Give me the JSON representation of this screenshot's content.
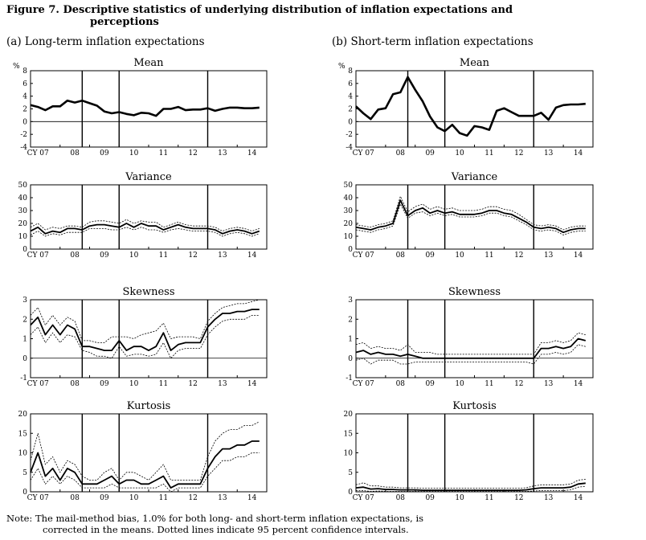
{
  "figure": {
    "title_line1": "Figure 7. Descriptive statistics of underlying distribution of inflation expectations and",
    "title_line2": "perceptions",
    "panel_a_heading": "(a) Long-term inflation expectations",
    "panel_b_heading": "(b) Short-term inflation expectations",
    "note_line1": "Note: The mail-method bias, 1.0% for both long- and short-term inflation expectations, is",
    "note_line2": "corrected in the means. Dotted lines indicate 95 percent confidence intervals."
  },
  "colors": {
    "line": "#000000",
    "background": "#ffffff"
  },
  "x_axis": {
    "range": [
      2007.0,
      2015.0
    ],
    "tick_labels": [
      {
        "label": "CY 07",
        "x": 2007.25
      },
      {
        "label": "08",
        "x": 2008.5
      },
      {
        "label": "09",
        "x": 2009.5
      },
      {
        "label": "10",
        "x": 2010.5
      },
      {
        "label": "11",
        "x": 2011.5
      },
      {
        "label": "12",
        "x": 2012.5
      },
      {
        "label": "13",
        "x": 2013.5
      },
      {
        "label": "14",
        "x": 2014.5
      }
    ],
    "vertical_lines": [
      2008.75,
      2010.0,
      2013.0
    ]
  },
  "chart_data": [
    {
      "type": "line",
      "panel": "a",
      "title": "Mean",
      "ylabel": "%",
      "ylim": [
        -4,
        8
      ],
      "yticks": [
        -4,
        -2,
        0,
        2,
        4,
        6,
        8
      ],
      "zero_line": true,
      "x": [
        2007.0,
        2007.25,
        2007.5,
        2007.75,
        2008.0,
        2008.25,
        2008.5,
        2008.75,
        2009.0,
        2009.25,
        2009.5,
        2009.75,
        2010.0,
        2010.25,
        2010.5,
        2010.75,
        2011.0,
        2011.25,
        2011.5,
        2011.75,
        2012.0,
        2012.25,
        2012.5,
        2012.75,
        2013.0,
        2013.25,
        2013.5,
        2013.75,
        2014.0,
        2014.25,
        2014.5,
        2014.75
      ],
      "series": [
        {
          "values": [
            2.6,
            2.3,
            1.8,
            2.4,
            2.4,
            3.3,
            3.0,
            3.3,
            2.9,
            2.5,
            1.6,
            1.3,
            1.5,
            1.2,
            1.0,
            1.4,
            1.3,
            0.9,
            2.0,
            2.0,
            2.3,
            1.8,
            1.9,
            1.9,
            2.1,
            1.7,
            2.0,
            2.2,
            2.2,
            2.1,
            2.1,
            2.2
          ]
        }
      ]
    },
    {
      "type": "line",
      "panel": "b",
      "title": "Mean",
      "ylabel": "%",
      "ylim": [
        -4,
        8
      ],
      "yticks": [
        -4,
        -2,
        0,
        2,
        4,
        6,
        8
      ],
      "zero_line": true,
      "x": [
        2007.0,
        2007.25,
        2007.5,
        2007.75,
        2008.0,
        2008.25,
        2008.5,
        2008.75,
        2009.0,
        2009.25,
        2009.5,
        2009.75,
        2010.0,
        2010.25,
        2010.5,
        2010.75,
        2011.0,
        2011.25,
        2011.5,
        2011.75,
        2012.0,
        2012.25,
        2012.5,
        2012.75,
        2013.0,
        2013.25,
        2013.5,
        2013.75,
        2014.0,
        2014.25,
        2014.5,
        2014.75
      ],
      "series": [
        {
          "values": [
            2.4,
            1.3,
            0.4,
            1.9,
            2.1,
            4.3,
            4.6,
            7.0,
            5.0,
            3.2,
            0.8,
            -0.9,
            -1.5,
            -0.5,
            -1.8,
            -2.2,
            -0.7,
            -0.9,
            -1.3,
            1.7,
            2.1,
            1.5,
            0.9,
            0.9,
            0.9,
            1.4,
            0.3,
            2.2,
            2.6,
            2.7,
            2.7,
            2.8
          ]
        }
      ]
    },
    {
      "type": "line",
      "panel": "a",
      "title": "Variance",
      "ylim": [
        0,
        50
      ],
      "yticks": [
        0,
        10,
        20,
        30,
        40,
        50
      ],
      "zero_line": false,
      "x": [
        2007.0,
        2007.25,
        2007.5,
        2007.75,
        2008.0,
        2008.25,
        2008.5,
        2008.75,
        2009.0,
        2009.25,
        2009.5,
        2009.75,
        2010.0,
        2010.25,
        2010.5,
        2010.75,
        2011.0,
        2011.25,
        2011.5,
        2011.75,
        2012.0,
        2012.25,
        2012.5,
        2012.75,
        2013.0,
        2013.25,
        2013.5,
        2013.75,
        2014.0,
        2014.25,
        2014.5,
        2014.75
      ],
      "series": [
        {
          "name": "mean",
          "values": [
            14,
            17,
            12,
            14,
            13,
            16,
            16,
            15,
            18,
            19,
            19,
            18,
            17,
            20,
            17,
            20,
            18,
            18,
            15,
            17,
            19,
            17,
            16,
            16,
            16,
            15,
            12,
            14,
            15,
            14,
            12,
            14
          ]
        },
        {
          "name": "upper",
          "values": [
            17,
            20,
            15,
            17,
            16,
            18,
            18,
            17,
            21,
            22,
            22,
            21,
            20,
            23,
            20,
            22,
            21,
            21,
            17,
            19,
            21,
            19,
            18,
            18,
            18,
            17,
            14,
            16,
            17,
            16,
            14,
            16
          ]
        },
        {
          "name": "lower",
          "values": [
            11,
            14,
            10,
            12,
            11,
            13,
            13,
            13,
            16,
            16,
            16,
            15,
            15,
            17,
            15,
            17,
            15,
            15,
            13,
            15,
            16,
            15,
            14,
            14,
            14,
            13,
            10,
            12,
            13,
            12,
            10,
            12
          ]
        }
      ]
    },
    {
      "type": "line",
      "panel": "b",
      "title": "Variance",
      "ylim": [
        0,
        50
      ],
      "yticks": [
        0,
        10,
        20,
        30,
        40,
        50
      ],
      "zero_line": false,
      "x": [
        2007.0,
        2007.25,
        2007.5,
        2007.75,
        2008.0,
        2008.25,
        2008.5,
        2008.75,
        2009.0,
        2009.25,
        2009.5,
        2009.75,
        2010.0,
        2010.25,
        2010.5,
        2010.75,
        2011.0,
        2011.25,
        2011.5,
        2011.75,
        2012.0,
        2012.25,
        2012.5,
        2012.75,
        2013.0,
        2013.25,
        2013.5,
        2013.75,
        2014.0,
        2014.25,
        2014.5,
        2014.75
      ],
      "series": [
        {
          "name": "mean",
          "values": [
            17,
            16,
            15,
            17,
            18,
            20,
            38,
            26,
            30,
            32,
            28,
            30,
            28,
            29,
            27,
            27,
            27,
            28,
            30,
            30,
            28,
            27,
            24,
            21,
            17,
            16,
            17,
            16,
            13,
            15,
            16,
            16
          ]
        },
        {
          "name": "upper",
          "values": [
            19,
            18,
            17,
            19,
            20,
            22,
            41,
            29,
            33,
            35,
            31,
            33,
            31,
            32,
            30,
            30,
            30,
            31,
            33,
            33,
            31,
            30,
            27,
            23,
            19,
            18,
            19,
            18,
            15,
            17,
            18,
            18
          ]
        },
        {
          "name": "lower",
          "values": [
            15,
            14,
            13,
            15,
            16,
            18,
            35,
            24,
            28,
            29,
            26,
            28,
            26,
            27,
            25,
            25,
            25,
            26,
            28,
            28,
            26,
            25,
            22,
            19,
            15,
            14,
            15,
            14,
            11,
            13,
            14,
            14
          ]
        }
      ]
    },
    {
      "type": "line",
      "panel": "a",
      "title": "Skewness",
      "ylim": [
        -1,
        3
      ],
      "yticks": [
        -1,
        0,
        1,
        2,
        3
      ],
      "zero_line": true,
      "x": [
        2007.0,
        2007.25,
        2007.5,
        2007.75,
        2008.0,
        2008.25,
        2008.5,
        2008.75,
        2009.0,
        2009.25,
        2009.5,
        2009.75,
        2010.0,
        2010.25,
        2010.5,
        2010.75,
        2011.0,
        2011.25,
        2011.5,
        2011.75,
        2012.0,
        2012.25,
        2012.5,
        2012.75,
        2013.0,
        2013.25,
        2013.5,
        2013.75,
        2014.0,
        2014.25,
        2014.5,
        2014.75
      ],
      "series": [
        {
          "name": "mean",
          "values": [
            1.7,
            2.1,
            1.2,
            1.7,
            1.2,
            1.7,
            1.5,
            0.6,
            0.6,
            0.5,
            0.4,
            0.4,
            0.9,
            0.4,
            0.6,
            0.6,
            0.4,
            0.6,
            1.3,
            0.4,
            0.7,
            0.8,
            0.8,
            0.8,
            1.6,
            2.0,
            2.3,
            2.3,
            2.4,
            2.4,
            2.5,
            2.5
          ]
        },
        {
          "name": "upper",
          "values": [
            2.2,
            2.6,
            1.7,
            2.2,
            1.7,
            2.1,
            1.9,
            0.9,
            0.9,
            0.8,
            0.8,
            1.1,
            1.1,
            1.1,
            1.0,
            1.2,
            1.3,
            1.4,
            1.8,
            1.0,
            1.1,
            1.1,
            1.1,
            1.0,
            1.9,
            2.3,
            2.6,
            2.7,
            2.8,
            2.8,
            2.9,
            3.0
          ]
        },
        {
          "name": "lower",
          "values": [
            1.2,
            1.6,
            0.8,
            1.3,
            0.8,
            1.2,
            1.1,
            0.4,
            0.3,
            0.1,
            0.1,
            0.0,
            0.6,
            0.1,
            0.2,
            0.2,
            0.1,
            0.2,
            0.8,
            0.0,
            0.4,
            0.5,
            0.5,
            0.5,
            1.2,
            1.6,
            1.9,
            2.0,
            2.0,
            2.0,
            2.2,
            2.2
          ]
        }
      ]
    },
    {
      "type": "line",
      "panel": "b",
      "title": "Skewness",
      "ylim": [
        -1,
        3
      ],
      "yticks": [
        -1,
        0,
        1,
        2,
        3
      ],
      "zero_line": true,
      "x": [
        2007.0,
        2007.25,
        2007.5,
        2007.75,
        2008.0,
        2008.25,
        2008.5,
        2008.75,
        2009.0,
        2009.25,
        2009.5,
        2009.75,
        2010.0,
        2010.25,
        2010.5,
        2010.75,
        2011.0,
        2011.25,
        2011.5,
        2011.75,
        2012.0,
        2012.25,
        2012.5,
        2012.75,
        2013.0,
        2013.25,
        2013.5,
        2013.75,
        2014.0,
        2014.25,
        2014.5,
        2014.75
      ],
      "series": [
        {
          "name": "mean",
          "values": [
            0.3,
            0.4,
            0.2,
            0.3,
            0.2,
            0.2,
            0.1,
            0.2,
            0.1,
            0.0,
            0.0,
            0.0,
            0.0,
            0.0,
            0.0,
            0.0,
            0.0,
            0.0,
            0.0,
            0.0,
            0.0,
            0.0,
            0.0,
            0.0,
            0.0,
            0.5,
            0.5,
            0.6,
            0.5,
            0.6,
            1.0,
            0.9
          ]
        },
        {
          "name": "upper",
          "values": [
            0.7,
            0.8,
            0.5,
            0.6,
            0.5,
            0.5,
            0.4,
            0.7,
            0.3,
            0.3,
            0.3,
            0.2,
            0.2,
            0.2,
            0.2,
            0.2,
            0.2,
            0.2,
            0.2,
            0.2,
            0.2,
            0.2,
            0.2,
            0.2,
            0.2,
            0.8,
            0.8,
            0.9,
            0.8,
            0.9,
            1.3,
            1.2
          ]
        },
        {
          "name": "lower",
          "values": [
            -0.1,
            0.0,
            -0.3,
            -0.1,
            -0.1,
            -0.1,
            -0.3,
            -0.3,
            -0.2,
            -0.2,
            -0.2,
            -0.2,
            -0.2,
            -0.2,
            -0.2,
            -0.2,
            -0.2,
            -0.2,
            -0.2,
            -0.2,
            -0.2,
            -0.2,
            -0.2,
            -0.2,
            -0.3,
            0.2,
            0.2,
            0.3,
            0.2,
            0.3,
            0.7,
            0.6
          ]
        }
      ]
    },
    {
      "type": "line",
      "panel": "a",
      "title": "Kurtosis",
      "ylim": [
        0,
        20
      ],
      "yticks": [
        0,
        5,
        10,
        15,
        20
      ],
      "zero_line": false,
      "x": [
        2007.0,
        2007.25,
        2007.5,
        2007.75,
        2008.0,
        2008.25,
        2008.5,
        2008.75,
        2009.0,
        2009.25,
        2009.5,
        2009.75,
        2010.0,
        2010.25,
        2010.5,
        2010.75,
        2011.0,
        2011.25,
        2011.5,
        2011.75,
        2012.0,
        2012.25,
        2012.5,
        2012.75,
        2013.0,
        2013.25,
        2013.5,
        2013.75,
        2014.0,
        2014.25,
        2014.5,
        2014.75
      ],
      "series": [
        {
          "name": "mean",
          "values": [
            5,
            10,
            4,
            6,
            3,
            6,
            5,
            2,
            2,
            2,
            3,
            4,
            2,
            3,
            3,
            2,
            2,
            3,
            4,
            1,
            2,
            2,
            2,
            2,
            6,
            9,
            11,
            11,
            12,
            12,
            13,
            13
          ]
        },
        {
          "name": "upper",
          "values": [
            8,
            15,
            7,
            9,
            5,
            8,
            7,
            4,
            3,
            3,
            5,
            6,
            3,
            5,
            5,
            4,
            3,
            5,
            7,
            3,
            3,
            3,
            3,
            3,
            9,
            13,
            15,
            16,
            16,
            17,
            17,
            18
          ]
        },
        {
          "name": "lower",
          "values": [
            3,
            6,
            2,
            4,
            2,
            4,
            3,
            1,
            1,
            1,
            1,
            2,
            1,
            1,
            1,
            1,
            1,
            1,
            2,
            0,
            1,
            1,
            1,
            1,
            4,
            6,
            8,
            8,
            9,
            9,
            10,
            10
          ]
        }
      ]
    },
    {
      "type": "line",
      "panel": "b",
      "title": "Kurtosis",
      "ylim": [
        0,
        20
      ],
      "yticks": [
        0,
        5,
        10,
        15,
        20
      ],
      "zero_line": false,
      "x": [
        2007.0,
        2007.25,
        2007.5,
        2007.75,
        2008.0,
        2008.25,
        2008.5,
        2008.75,
        2009.0,
        2009.25,
        2009.5,
        2009.75,
        2010.0,
        2010.25,
        2010.5,
        2010.75,
        2011.0,
        2011.25,
        2011.5,
        2011.75,
        2012.0,
        2012.25,
        2012.5,
        2012.75,
        2013.0,
        2013.25,
        2013.5,
        2013.75,
        2014.0,
        2014.25,
        2014.5,
        2014.75
      ],
      "series": [
        {
          "name": "mean",
          "values": [
            1.0,
            1.2,
            0.7,
            0.8,
            0.6,
            0.6,
            0.5,
            0.5,
            0.5,
            0.4,
            0.4,
            0.4,
            0.4,
            0.4,
            0.4,
            0.4,
            0.4,
            0.4,
            0.4,
            0.4,
            0.4,
            0.4,
            0.4,
            0.5,
            0.8,
            1.0,
            1.0,
            1.0,
            1.0,
            1.2,
            2.0,
            2.2
          ]
        },
        {
          "name": "upper",
          "values": [
            1.8,
            2.3,
            1.5,
            1.5,
            1.2,
            1.2,
            1.0,
            1.0,
            1.0,
            0.9,
            0.9,
            0.9,
            0.9,
            0.9,
            0.9,
            0.9,
            0.9,
            0.9,
            0.9,
            0.9,
            0.9,
            0.9,
            0.9,
            1.0,
            1.5,
            1.8,
            1.8,
            1.8,
            1.8,
            2.0,
            3.0,
            3.2
          ]
        },
        {
          "name": "lower",
          "values": [
            0.3,
            0.3,
            0.1,
            0.2,
            0.1,
            0.1,
            0.1,
            0.1,
            0.1,
            0.1,
            0.1,
            0.1,
            0.1,
            0.1,
            0.1,
            0.1,
            0.1,
            0.1,
            0.1,
            0.1,
            0.1,
            0.1,
            0.1,
            0.1,
            0.2,
            0.3,
            0.3,
            0.3,
            0.3,
            0.5,
            1.2,
            1.4
          ]
        }
      ]
    }
  ]
}
